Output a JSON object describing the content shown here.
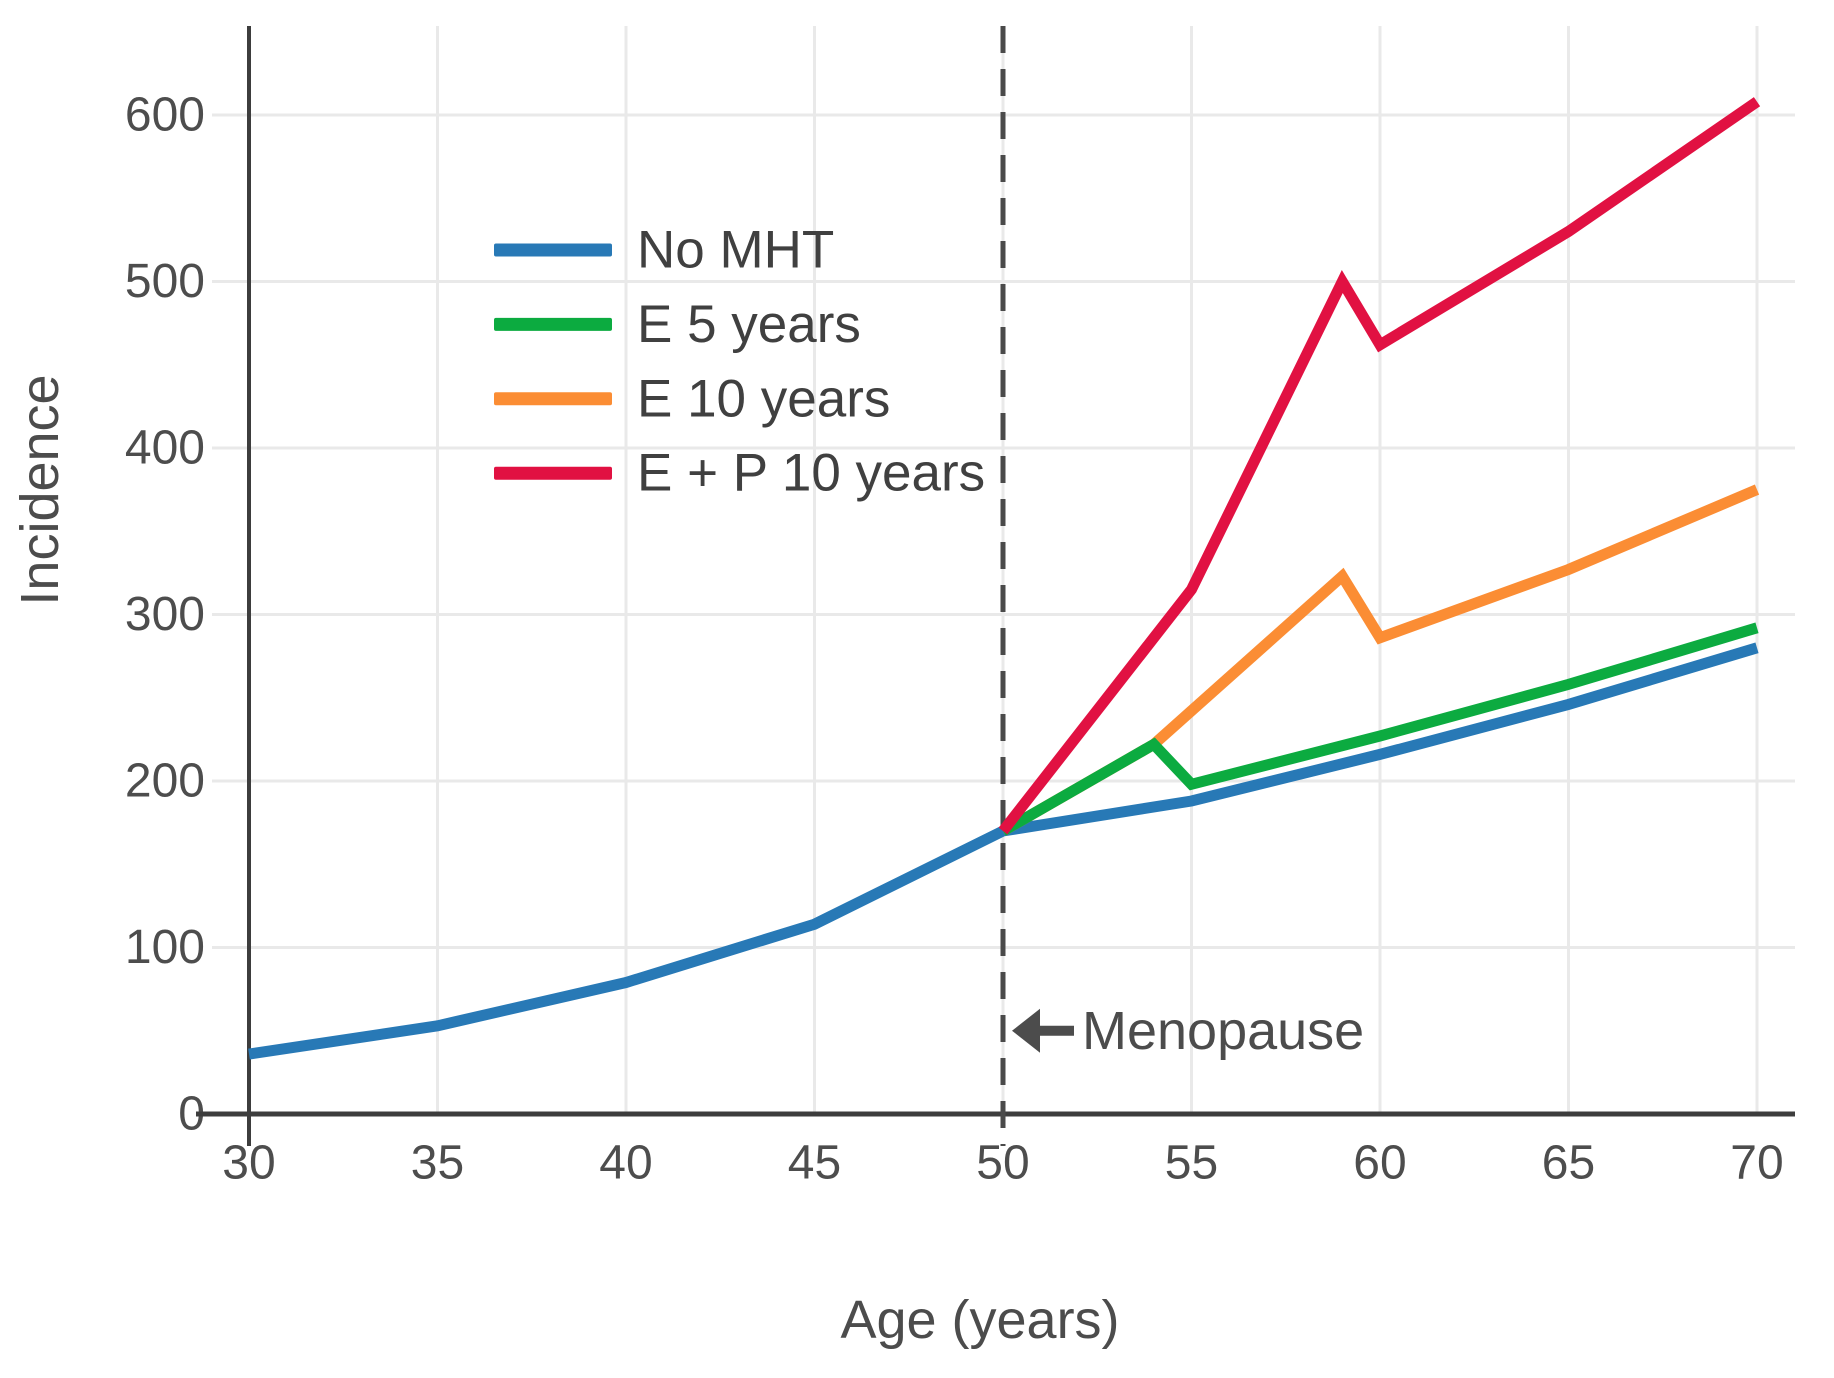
{
  "chart_data": {
    "type": "line",
    "title": "",
    "xlabel": "Age (years)",
    "ylabel": "Incidence",
    "xlim": [
      30,
      71
    ],
    "ylim": [
      0,
      652
    ],
    "xticks": [
      30,
      35,
      40,
      45,
      50,
      55,
      60,
      65,
      70
    ],
    "yticks": [
      0,
      100,
      200,
      300,
      400,
      500,
      600
    ],
    "grid": true,
    "legend_position": "upper-left-inside",
    "series": [
      {
        "name": "No MHT",
        "color": "#2879b6",
        "points": [
          [
            30,
            36
          ],
          [
            35,
            53
          ],
          [
            40,
            79
          ],
          [
            45,
            114
          ],
          [
            50,
            170
          ],
          [
            55,
            188
          ],
          [
            60,
            216
          ],
          [
            65,
            246
          ],
          [
            70,
            280
          ]
        ]
      },
      {
        "name": "E 5 years",
        "color": "#0cab40",
        "points": [
          [
            50,
            170
          ],
          [
            54,
            222
          ],
          [
            55,
            198
          ],
          [
            60,
            227
          ],
          [
            65,
            258
          ],
          [
            70,
            292
          ]
        ]
      },
      {
        "name": "E 10 years",
        "color": "#fb8d34",
        "points": [
          [
            50,
            170
          ],
          [
            54,
            222
          ],
          [
            59,
            323
          ],
          [
            60,
            286
          ],
          [
            65,
            327
          ],
          [
            70,
            375
          ]
        ]
      },
      {
        "name": "E + P 10 years",
        "color": "#e11142",
        "points": [
          [
            50,
            170
          ],
          [
            55,
            315
          ],
          [
            59,
            500
          ],
          [
            60,
            462
          ],
          [
            65,
            530
          ],
          [
            70,
            608
          ]
        ]
      }
    ],
    "annotation": {
      "label": "Menopause",
      "arrow_direction": "left",
      "line_x": 50,
      "line_style": "dashed",
      "label_y_value": 50
    },
    "style_colors": {
      "axis": "#3d3d3d",
      "dashed_line": "#4a4a4a",
      "grid": "#e9e9e9",
      "tick_text": "#4d4d4d",
      "title_text": "#4c4c4c",
      "legend_text": "#404040",
      "background": "#ffffff"
    }
  }
}
